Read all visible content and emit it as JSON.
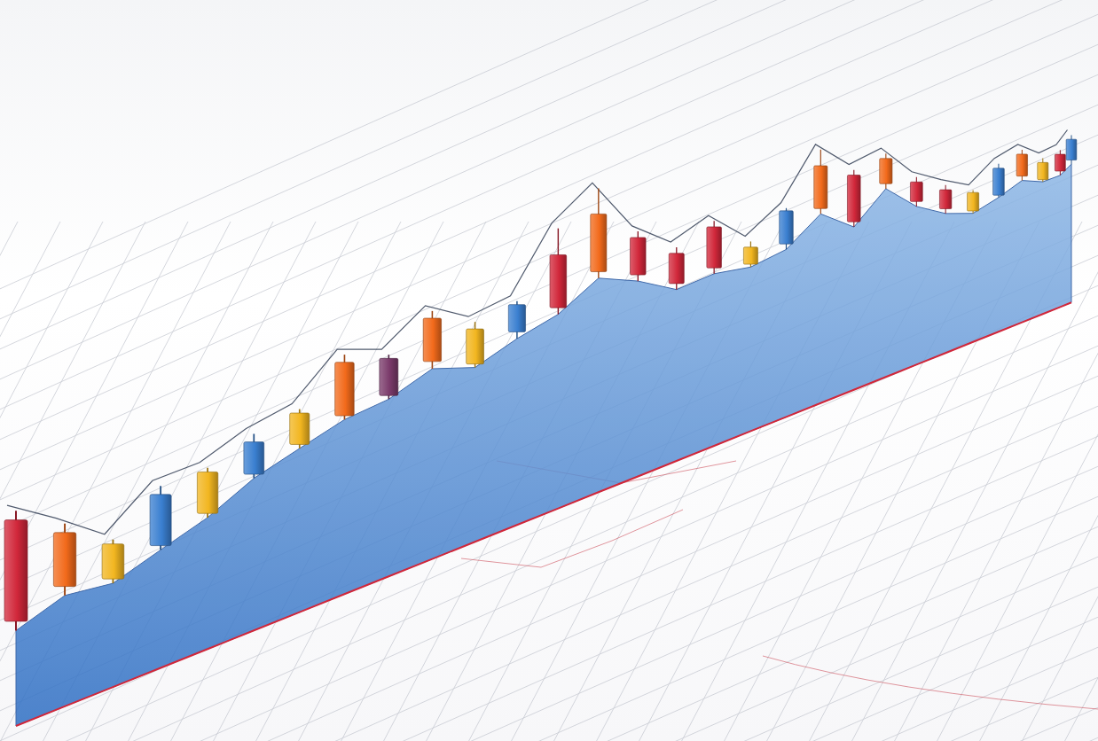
{
  "chart_data": {
    "type": "candlestick",
    "categories": [
      null,
      null,
      null,
      null,
      null,
      null,
      null,
      null,
      null,
      null,
      null,
      null,
      null,
      null,
      null,
      null,
      null,
      null,
      null,
      null,
      null,
      null,
      null,
      null,
      null,
      null,
      null,
      null,
      null,
      null
    ],
    "open": [
      20,
      24,
      22,
      26,
      30,
      36,
      40,
      44,
      46,
      52,
      48,
      54,
      58,
      66,
      62,
      56,
      58,
      56,
      60,
      70,
      62,
      74,
      64,
      58,
      54,
      58,
      64,
      60,
      62,
      66
    ],
    "high": [
      44,
      38,
      31,
      40,
      41,
      46,
      49,
      60,
      57,
      66,
      60,
      63,
      82,
      92,
      76,
      68,
      74,
      64,
      73,
      92,
      82,
      86,
      74,
      68,
      63,
      72,
      76,
      70,
      72,
      78
    ],
    "low": [
      18,
      22,
      21,
      25,
      29,
      35,
      39,
      43,
      45,
      50,
      47,
      52,
      56,
      64,
      60,
      54,
      56,
      55,
      58,
      68,
      60,
      72,
      62,
      56,
      53,
      57,
      62,
      59,
      60,
      64
    ],
    "close": [
      42,
      36,
      30,
      38,
      40,
      44,
      48,
      58,
      56,
      64,
      58,
      62,
      74,
      84,
      74,
      66,
      72,
      62,
      72,
      86,
      80,
      84,
      72,
      66,
      62,
      70,
      74,
      68,
      70,
      76
    ],
    "colors": [
      "#d1273a",
      "#f26a1b",
      "#f2b620",
      "#3a7fd0",
      "#f2b620",
      "#3a7fd0",
      "#f2b620",
      "#f26a1b",
      "#7a3a6a",
      "#f26a1b",
      "#f2b620",
      "#3a7fd0",
      "#d1273a",
      "#f26a1b",
      "#d1273a",
      "#d1273a",
      "#d1273a",
      "#f2b620",
      "#3a7fd0",
      "#f26a1b",
      "#d1273a",
      "#f26a1b",
      "#d1273a",
      "#d1273a",
      "#f2b620",
      "#3a7fd0",
      "#f26a1b",
      "#f2b620",
      "#d1273a",
      "#3a7fd0"
    ],
    "ylim": [
      0,
      100
    ],
    "tick_labels": false
  }
}
